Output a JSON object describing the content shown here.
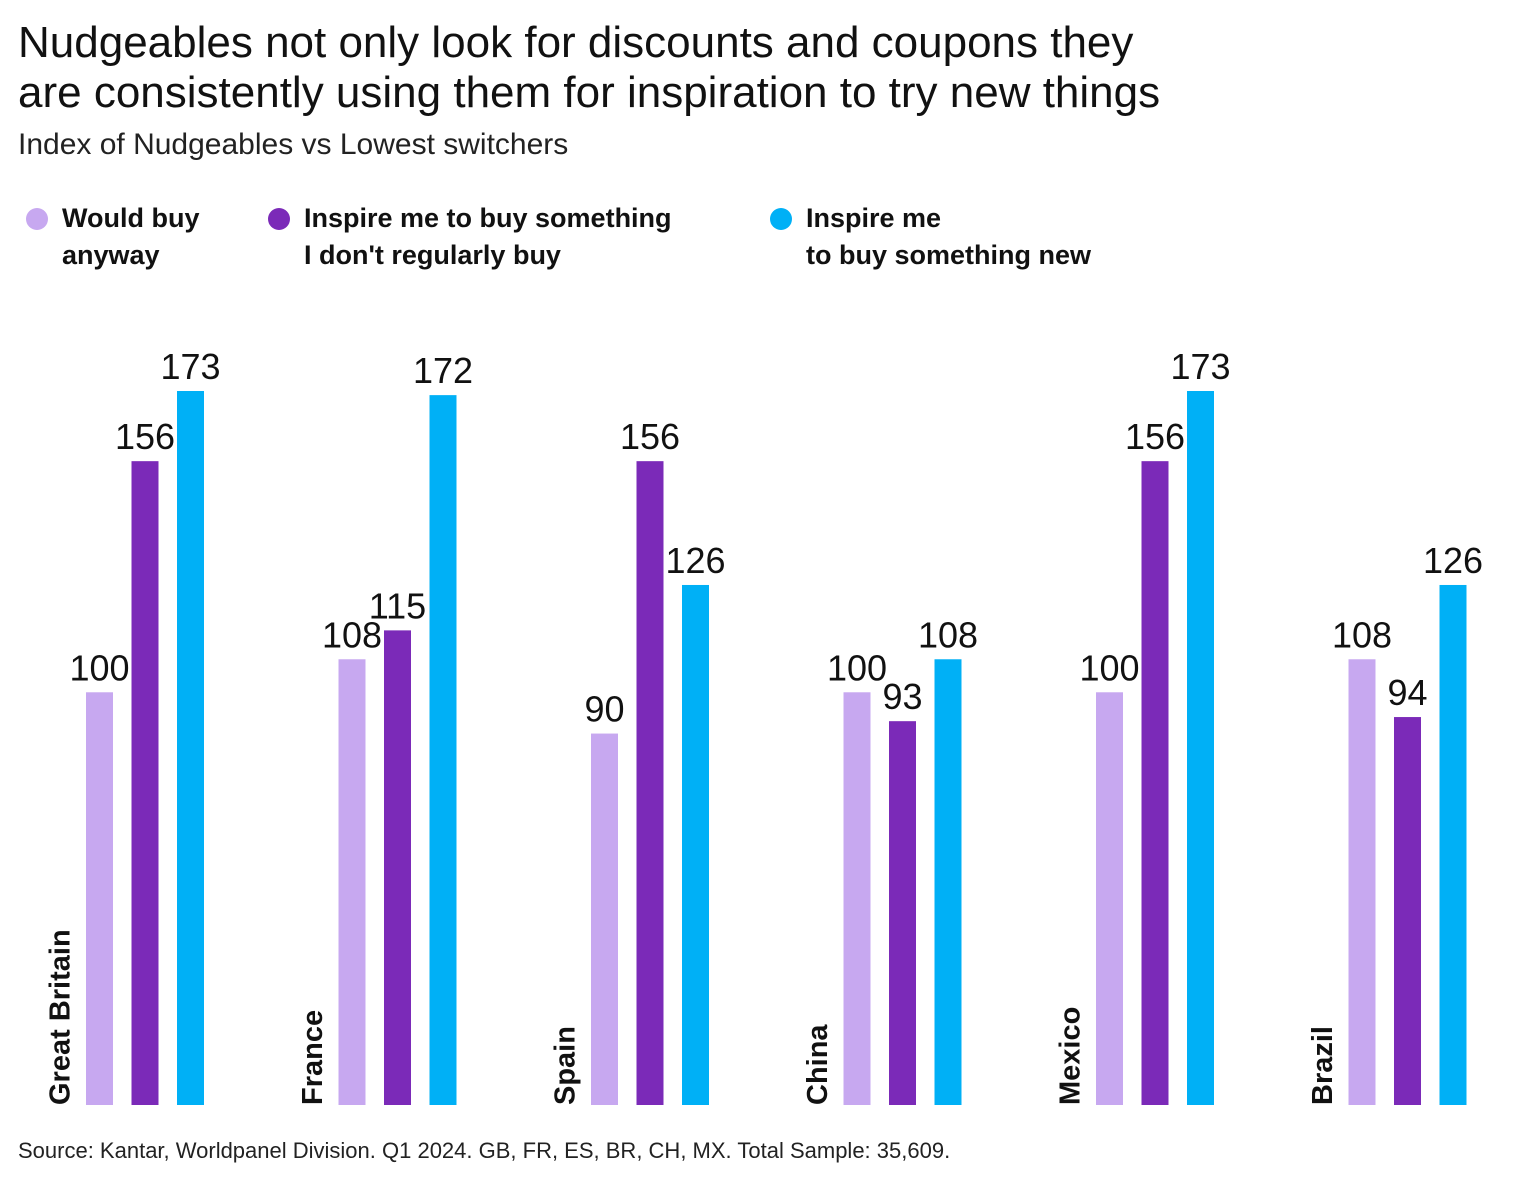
{
  "title_lines": [
    "Nudgeables not only look for discounts and coupons they",
    "are consistently using them for inspiration to try new things"
  ],
  "subtitle": "Index of Nudgeables vs Lowest switchers",
  "legend": [
    {
      "lines": [
        "Would buy",
        "anyway"
      ],
      "color": "#c7a8f0"
    },
    {
      "lines": [
        "Inspire me to buy something",
        "I don't regularly buy"
      ],
      "color": "#7b2ab8"
    },
    {
      "lines": [
        "Inspire me",
        "to buy something new"
      ],
      "color": "#00b0f6"
    }
  ],
  "source": "Source:  Kantar, Worldpanel Division. Q1 2024. GB, FR, ES, BR, CH, MX. Total Sample: 35,609.",
  "chart_data": {
    "type": "bar",
    "categories": [
      "Great Britain",
      "France",
      "Spain",
      "China",
      "Mexico",
      "Brazil"
    ],
    "series": [
      {
        "name": "Would buy anyway",
        "color": "#c7a8f0",
        "values": [
          100,
          108,
          90,
          100,
          100,
          108
        ]
      },
      {
        "name": "Inspire me to buy something I don't regularly buy",
        "color": "#7b2ab8",
        "values": [
          156,
          115,
          156,
          93,
          156,
          94
        ]
      },
      {
        "name": "Inspire me to buy something new",
        "color": "#00b0f6",
        "values": [
          173,
          172,
          126,
          108,
          173,
          126
        ]
      }
    ],
    "ylim": [
      0,
      173
    ],
    "grid": false,
    "legend_position": "top-left",
    "data_labels": true
  }
}
